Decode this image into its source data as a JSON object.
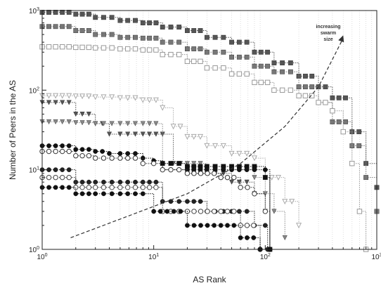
{
  "chart_data": {
    "type": "line",
    "xlabel": "AS Rank",
    "ylabel": "Number of Peers in the AS",
    "x_scale": "log",
    "y_scale": "log",
    "xlim": [
      1,
      1000
    ],
    "ylim": [
      1,
      1000
    ],
    "x_ticks": [
      {
        "base": "10",
        "exp": "0"
      },
      {
        "base": "10",
        "exp": "1"
      },
      {
        "base": "10",
        "exp": "2"
      },
      {
        "base": "10",
        "exp": "3"
      }
    ],
    "y_ticks": [
      {
        "base": "10",
        "exp": "0"
      },
      {
        "base": "10",
        "exp": "1"
      },
      {
        "base": "10",
        "exp": "2"
      },
      {
        "base": "10",
        "exp": "3"
      }
    ],
    "grid": "vertical",
    "annotation": {
      "text_lines": [
        "increasing",
        "swarm",
        "size"
      ],
      "arrow": "dashed curve pointing up-right"
    },
    "series": [
      {
        "marker": "square",
        "color": "#555555",
        "points": [
          [
            1,
            950
          ],
          [
            2,
            900
          ],
          [
            3,
            820
          ],
          [
            5,
            750
          ],
          [
            8,
            700
          ],
          [
            12,
            620
          ],
          [
            20,
            560
          ],
          [
            30,
            460
          ],
          [
            50,
            400
          ],
          [
            80,
            300
          ],
          [
            120,
            220
          ],
          [
            200,
            150
          ],
          [
            300,
            110
          ],
          [
            400,
            80
          ],
          [
            600,
            30
          ],
          [
            800,
            12
          ],
          [
            1000,
            6
          ]
        ]
      },
      {
        "marker": "square",
        "color": "#777777",
        "points": [
          [
            1,
            630
          ],
          [
            2,
            560
          ],
          [
            3,
            500
          ],
          [
            5,
            460
          ],
          [
            8,
            450
          ],
          [
            12,
            400
          ],
          [
            20,
            330
          ],
          [
            30,
            300
          ],
          [
            50,
            260
          ],
          [
            80,
            200
          ],
          [
            120,
            170
          ],
          [
            200,
            110
          ],
          [
            300,
            70
          ],
          [
            400,
            40
          ],
          [
            600,
            20
          ],
          [
            800,
            8
          ],
          [
            1000,
            3
          ]
        ]
      },
      {
        "marker": "square-open",
        "color": "#999999",
        "points": [
          [
            1,
            350
          ],
          [
            2,
            345
          ],
          [
            3,
            340
          ],
          [
            5,
            330
          ],
          [
            8,
            320
          ],
          [
            12,
            280
          ],
          [
            20,
            230
          ],
          [
            30,
            190
          ],
          [
            50,
            160
          ],
          [
            80,
            125
          ],
          [
            120,
            100
          ],
          [
            200,
            85
          ],
          [
            300,
            70
          ],
          [
            400,
            55
          ],
          [
            500,
            30
          ],
          [
            600,
            12
          ],
          [
            700,
            3
          ],
          [
            800,
            1
          ]
        ]
      },
      {
        "marker": "triangle-down-open",
        "color": "#aaaaaa",
        "points": [
          [
            1,
            85
          ],
          [
            2,
            84
          ],
          [
            3,
            82
          ],
          [
            5,
            80
          ],
          [
            8,
            75
          ],
          [
            12,
            60
          ],
          [
            15,
            35
          ],
          [
            20,
            26
          ],
          [
            30,
            20
          ],
          [
            50,
            16
          ],
          [
            80,
            14
          ],
          [
            100,
            8
          ],
          [
            150,
            4
          ],
          [
            200,
            2
          ]
        ]
      },
      {
        "marker": "triangle-down",
        "color": "#555555",
        "points": [
          [
            1,
            70
          ],
          [
            2,
            50
          ],
          [
            3,
            38
          ],
          [
            4,
            28
          ],
          [
            5,
            28
          ],
          [
            8,
            28
          ],
          [
            12,
            28
          ],
          [
            15,
            12
          ],
          [
            20,
            9
          ],
          [
            30,
            9
          ],
          [
            50,
            7
          ],
          [
            80,
            5
          ],
          [
            100,
            3
          ]
        ]
      },
      {
        "marker": "triangle-down",
        "color": "#888888",
        "points": [
          [
            1,
            40
          ],
          [
            2,
            39
          ],
          [
            3,
            38
          ],
          [
            5,
            38
          ],
          [
            8,
            38
          ],
          [
            12,
            12
          ],
          [
            20,
            12
          ],
          [
            30,
            11
          ],
          [
            50,
            10
          ],
          [
            80,
            8
          ],
          [
            100,
            5
          ],
          [
            120,
            3
          ],
          [
            150,
            1.4
          ]
        ]
      },
      {
        "marker": "circle",
        "color": "#111111",
        "points": [
          [
            1,
            20
          ],
          [
            2,
            18
          ],
          [
            3,
            17
          ],
          [
            4,
            16
          ],
          [
            5,
            16
          ],
          [
            8,
            14
          ],
          [
            10,
            13
          ],
          [
            12,
            10
          ],
          [
            20,
            10
          ],
          [
            30,
            10
          ],
          [
            50,
            10
          ],
          [
            80,
            10
          ],
          [
            100,
            10
          ],
          [
            110,
            1
          ]
        ]
      },
      {
        "marker": "circle-open",
        "color": "#333333",
        "points": [
          [
            1,
            17
          ],
          [
            2,
            15
          ],
          [
            3,
            14
          ],
          [
            5,
            14
          ],
          [
            8,
            12
          ],
          [
            10,
            12
          ],
          [
            12,
            10
          ],
          [
            20,
            9
          ],
          [
            40,
            8
          ],
          [
            60,
            6
          ],
          [
            80,
            5
          ],
          [
            100,
            3
          ],
          [
            110,
            1
          ]
        ]
      },
      {
        "marker": "circle",
        "color": "#222222",
        "points": [
          [
            1,
            10
          ],
          [
            2,
            7
          ],
          [
            3,
            7
          ],
          [
            5,
            7
          ],
          [
            8,
            7
          ],
          [
            12,
            4
          ],
          [
            20,
            4
          ],
          [
            30,
            3
          ],
          [
            50,
            3
          ],
          [
            80,
            2
          ],
          [
            100,
            2
          ],
          [
            105,
            1
          ]
        ]
      },
      {
        "marker": "circle-open",
        "color": "#444444",
        "points": [
          [
            1,
            8
          ],
          [
            2,
            6
          ],
          [
            3,
            6
          ],
          [
            5,
            6
          ],
          [
            8,
            6
          ],
          [
            12,
            3
          ],
          [
            20,
            3
          ],
          [
            40,
            3
          ],
          [
            60,
            2
          ],
          [
            90,
            1
          ]
        ]
      },
      {
        "marker": "circle",
        "color": "#111111",
        "points": [
          [
            1,
            6
          ],
          [
            2,
            5
          ],
          [
            3,
            5
          ],
          [
            5,
            5
          ],
          [
            8,
            5
          ],
          [
            10,
            3
          ],
          [
            20,
            2
          ],
          [
            40,
            2
          ],
          [
            60,
            1.4
          ],
          [
            90,
            1
          ]
        ]
      },
      {
        "marker": "square",
        "color": "#111111",
        "points": [
          [
            12,
            12
          ],
          [
            20,
            11
          ],
          [
            30,
            11
          ],
          [
            50,
            11
          ],
          [
            80,
            11
          ],
          [
            100,
            8
          ],
          [
            110,
            1
          ]
        ]
      }
    ]
  }
}
